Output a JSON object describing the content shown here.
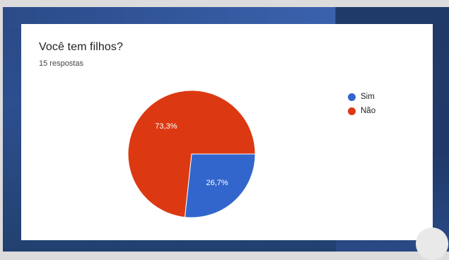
{
  "title": "Você tem filhos?",
  "subtitle": "15 respostas",
  "chart_data": {
    "type": "pie",
    "title": "Você tem filhos?",
    "slices": [
      {
        "label": "Sim",
        "value": 26.7,
        "display": "26,7%",
        "color": "#3366cc"
      },
      {
        "label": "Não",
        "value": 73.3,
        "display": "73,3%",
        "color": "#dc3912"
      }
    ],
    "legend_position": "right"
  },
  "legend": [
    {
      "label": "Sim",
      "color": "#3366cc"
    },
    {
      "label": "Não",
      "color": "#dc3912"
    }
  ]
}
